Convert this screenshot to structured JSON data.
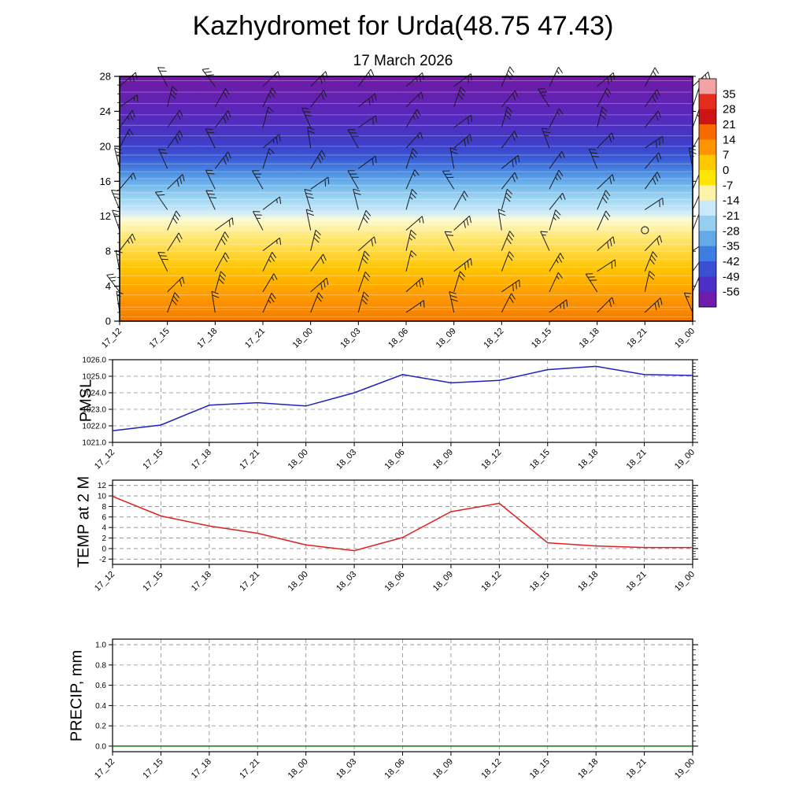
{
  "title": "Kazhydromet for Urda(48.75 47.43)",
  "subtitle": "17 March 2026",
  "time_labels": [
    "17_12",
    "17_15",
    "17_18",
    "17_21",
    "18_00",
    "18_03",
    "18_06",
    "18_09",
    "18_12",
    "18_15",
    "18_18",
    "18_21",
    "19_00"
  ],
  "chart_data": [
    {
      "id": "profile",
      "type": "heatmap",
      "description": "time-height temperature cross-section with wind barbs",
      "ylim": [
        0,
        28
      ],
      "yticks": [
        0,
        4,
        8,
        12,
        16,
        20,
        24,
        28
      ],
      "profile_stops": [
        {
          "level": 0,
          "temp": 9,
          "color": "#f57a00"
        },
        {
          "level": 3,
          "temp": 6,
          "color": "#ff9b00"
        },
        {
          "level": 6,
          "temp": 2,
          "color": "#ffc400"
        },
        {
          "level": 9,
          "temp": -2,
          "color": "#ffe25e"
        },
        {
          "level": 10.8,
          "temp": -6,
          "color": "#fff3a6"
        },
        {
          "level": 11.6,
          "temp": -10,
          "color": "#fdfbd0"
        },
        {
          "level": 12.4,
          "temp": -14,
          "color": "#cfeaf8"
        },
        {
          "level": 14,
          "temp": -19,
          "color": "#a0d6f2"
        },
        {
          "level": 15.5,
          "temp": -24,
          "color": "#74b9ec"
        },
        {
          "level": 17,
          "temp": -30,
          "color": "#4a8ce2"
        },
        {
          "level": 18.5,
          "temp": -36,
          "color": "#3a5ed6"
        },
        {
          "level": 20,
          "temp": -42,
          "color": "#3c41cb"
        },
        {
          "level": 22,
          "temp": -47,
          "color": "#4c31c2"
        },
        {
          "level": 24,
          "temp": -51,
          "color": "#5a27b9"
        },
        {
          "level": 26,
          "temp": -54,
          "color": "#661fae"
        },
        {
          "level": 28,
          "temp": -57,
          "color": "#6f1aa6"
        }
      ],
      "contour_levels": [
        1.6,
        3,
        4.2,
        5.2,
        6.2,
        7.1,
        8,
        8.8,
        9.6,
        10.4,
        11.1,
        11.8,
        12.5,
        13.2,
        13.9,
        14.7,
        15.5,
        16.3,
        17.1,
        18,
        19,
        20,
        21.2,
        22.4,
        23.6,
        24.9,
        26.2,
        27.5
      ],
      "warm_contour_levels": [
        0.5,
        1.3
      ],
      "wind_barbs": {
        "columns": 13,
        "rows": 12,
        "calm": {
          "time_index": 11,
          "level": 10.4
        }
      },
      "colorbar": {
        "tick_labels": [
          "35",
          "28",
          "21",
          "14",
          "7",
          "0",
          "-7",
          "-14",
          "-21",
          "-28",
          "-35",
          "-42",
          "-49",
          "-56"
        ],
        "bands_top_to_bottom": [
          "#f2a4a4",
          "#e62c1c",
          "#cd1414",
          "#f66a00",
          "#ff9400",
          "#ffc800",
          "#ffe600",
          "#fdf3a8",
          "#c9e8f8",
          "#97cff1",
          "#63abe8",
          "#3f7de0",
          "#3a4fd2",
          "#4b2fc6",
          "#6d1cab"
        ]
      }
    },
    {
      "id": "pmsl",
      "type": "line",
      "label": "PMSL",
      "color": "#2020c0",
      "ylim": [
        1021.0,
        1026.0
      ],
      "yticks": [
        1021.0,
        1022.0,
        1023.0,
        1024.0,
        1025.0,
        1026.0
      ],
      "ytick_labels": [
        "1021.0",
        "1022.0",
        "1023.0",
        "1024.0",
        "1025.0",
        "1026.0"
      ],
      "minor_step": 0.2,
      "values": [
        1021.7,
        1022.05,
        1023.25,
        1023.4,
        1023.2,
        1024.0,
        1025.1,
        1024.6,
        1024.75,
        1025.4,
        1025.6,
        1025.1,
        1025.05
      ]
    },
    {
      "id": "temp2m",
      "type": "line",
      "label": "TEMP at 2 M",
      "color": "#e02020",
      "ylim": [
        -3,
        13
      ],
      "yticks": [
        -2,
        0,
        2,
        4,
        6,
        8,
        10,
        12
      ],
      "ytick_labels": [
        "-2",
        "0",
        "2",
        "4",
        "6",
        "8",
        "10",
        "12"
      ],
      "minor_step": 0.5,
      "values": [
        9.9,
        6.2,
        4.3,
        2.9,
        0.7,
        -0.4,
        2.1,
        7.0,
        8.6,
        1.1,
        0.5,
        0.2,
        0.2
      ]
    },
    {
      "id": "precip",
      "type": "line",
      "label": "PRECIP, mm",
      "color": "#008000",
      "ylim": [
        -0.055,
        1.055
      ],
      "yticks": [
        0.0,
        0.2,
        0.4,
        0.6,
        0.8,
        1.0
      ],
      "ytick_labels": [
        "0.0",
        "0.2",
        "0.4",
        "0.6",
        "0.8",
        "1.0"
      ],
      "minor_step": 0.05,
      "values": [
        0,
        0,
        0,
        0,
        0,
        0,
        0,
        0,
        0,
        0,
        0,
        0,
        0
      ]
    }
  ]
}
